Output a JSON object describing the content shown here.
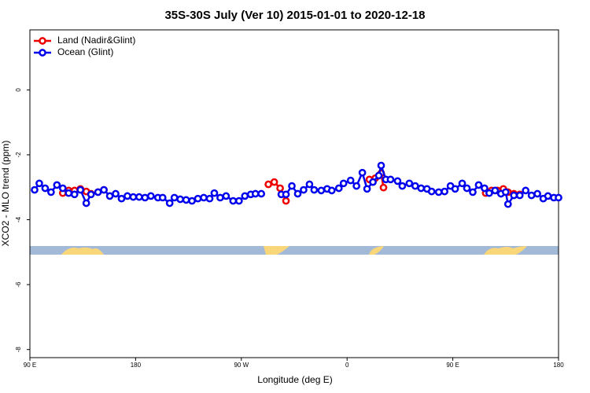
{
  "chart_data": {
    "type": "line",
    "title": "35S-30S July (Ver 10)   2015-01-01 to 2020-12-18",
    "x_label": "Longitude (deg E)",
    "y_label": "XCO2 - MLO trend (ppm)",
    "xlim": [
      90,
      540
    ],
    "xticks": [
      {
        "value": 90,
        "label": "90 E"
      },
      180,
      {
        "value": 270,
        "label": "90 W"
      },
      {
        "value": 360,
        "label": "0"
      },
      {
        "value": 450,
        "label": "90 E"
      },
      {
        "value": 540,
        "label": "180"
      }
    ],
    "ylim": [
      -8.25,
      1.85
    ],
    "yticks": [
      0,
      -2,
      -4,
      -6,
      -8
    ],
    "legend": "top-left",
    "series": [
      {
        "name": "Land (Nadir&Glint)",
        "color": "#ee0000",
        "x": [
          118,
          123,
          128,
          133,
          138,
          142,
          148,
          153,
          null,
          293,
          298,
          303,
          308,
          null,
          379,
          384,
          389,
          391,
          null,
          478,
          483,
          488,
          493,
          497,
          502,
          507
        ],
        "values": [
          -3.18,
          -3.1,
          -3.1,
          -3.05,
          -3.13,
          -3.2,
          -3.15,
          -3.08,
          null,
          -2.91,
          -2.84,
          -3.03,
          -3.42,
          null,
          -2.76,
          -2.72,
          -2.57,
          -3.01,
          null,
          -3.18,
          -3.1,
          -3.1,
          -3.05,
          -3.15,
          -3.2,
          -3.22
        ]
      },
      {
        "name": "Ocean (Glint)",
        "color": "#0000ee",
        "x": [
          94,
          98,
          103,
          108,
          113,
          118,
          123,
          128,
          133,
          138,
          142,
          148,
          153,
          158,
          163,
          168,
          173,
          178,
          183,
          188,
          193,
          199,
          203,
          209,
          213,
          218,
          223,
          228,
          233,
          238,
          243,
          247,
          252,
          257,
          263,
          268,
          273,
          278,
          282,
          287,
          null,
          304,
          308,
          313,
          318,
          323,
          328,
          332,
          338,
          343,
          347,
          353,
          357,
          363,
          368,
          373,
          377,
          382,
          387,
          389,
          393,
          397,
          403,
          407,
          413,
          418,
          423,
          428,
          432,
          438,
          443,
          448,
          452,
          458,
          462,
          467,
          472,
          477,
          481,
          486,
          491,
          495,
          497,
          502,
          507,
          512,
          517,
          522,
          527,
          531,
          536,
          540
        ],
        "values": [
          -3.08,
          -2.88,
          -3.03,
          -3.15,
          -2.93,
          -3.03,
          -3.18,
          -3.22,
          -3.08,
          -3.49,
          -3.22,
          -3.15,
          -3.08,
          -3.27,
          -3.2,
          -3.35,
          -3.27,
          -3.3,
          -3.3,
          -3.32,
          -3.27,
          -3.32,
          -3.32,
          -3.49,
          -3.32,
          -3.37,
          -3.39,
          -3.42,
          -3.35,
          -3.32,
          -3.35,
          -3.18,
          -3.32,
          -3.27,
          -3.42,
          -3.42,
          -3.27,
          -3.22,
          -3.2,
          -3.2,
          null,
          -3.22,
          -3.22,
          -2.96,
          -3.2,
          -3.08,
          -2.91,
          -3.08,
          -3.1,
          -3.05,
          -3.1,
          -3.03,
          -2.88,
          -2.79,
          -2.96,
          -2.55,
          -3.05,
          -2.84,
          -2.64,
          -2.33,
          -2.76,
          -2.76,
          -2.81,
          -2.96,
          -2.88,
          -2.96,
          -3.03,
          -3.05,
          -3.13,
          -3.15,
          -3.13,
          -2.96,
          -3.05,
          -2.88,
          -3.03,
          -3.15,
          -2.93,
          -3.03,
          -3.18,
          -3.1,
          -3.2,
          -3.15,
          -3.52,
          -3.25,
          -3.25,
          -3.1,
          -3.25,
          -3.2,
          -3.35,
          -3.27,
          -3.32,
          -3.32
        ]
      }
    ]
  }
}
